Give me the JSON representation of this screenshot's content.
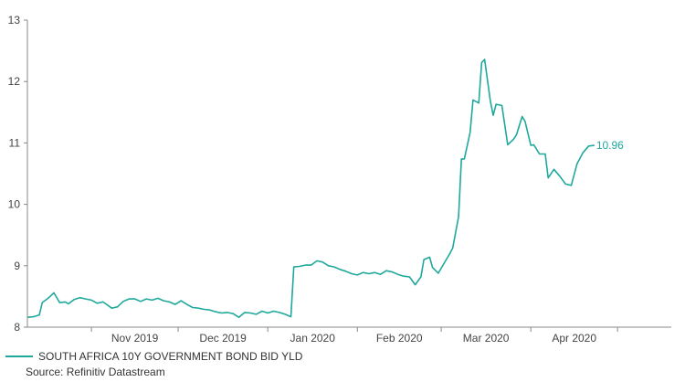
{
  "chart_data": {
    "type": "line",
    "title": "",
    "xlabel": "",
    "ylabel": "",
    "ylim": [
      8,
      13
    ],
    "yticks": [
      "8",
      "9",
      "10",
      "11",
      "12",
      "13"
    ],
    "xticks": [
      "Nov 2019",
      "Dec 2019",
      "Jan 2020",
      "Feb 2020",
      "Mar 2020",
      "Apr 2020"
    ],
    "grid": false,
    "legend_position": "bottom-left",
    "end_label": "10.96",
    "series": [
      {
        "name": "SOUTH AFRICA 10Y GOVERNMENT BOND BID YLD",
        "color": "#1fa89c",
        "points": [
          [
            "2019-10-10",
            8.16
          ],
          [
            "2019-10-12",
            8.17
          ],
          [
            "2019-10-14",
            8.2
          ],
          [
            "2019-10-15",
            8.4
          ],
          [
            "2019-10-17",
            8.47
          ],
          [
            "2019-10-19",
            8.56
          ],
          [
            "2019-10-21",
            8.4
          ],
          [
            "2019-10-23",
            8.41
          ],
          [
            "2019-10-24",
            8.38
          ],
          [
            "2019-10-26",
            8.45
          ],
          [
            "2019-10-28",
            8.48
          ],
          [
            "2019-10-30",
            8.46
          ],
          [
            "2019-11-01",
            8.44
          ],
          [
            "2019-11-03",
            8.39
          ],
          [
            "2019-11-05",
            8.41
          ],
          [
            "2019-11-06",
            8.38
          ],
          [
            "2019-11-08",
            8.31
          ],
          [
            "2019-11-10",
            8.33
          ],
          [
            "2019-11-12",
            8.42
          ],
          [
            "2019-11-14",
            8.46
          ],
          [
            "2019-11-16",
            8.46
          ],
          [
            "2019-11-18",
            8.42
          ],
          [
            "2019-11-20",
            8.46
          ],
          [
            "2019-11-22",
            8.44
          ],
          [
            "2019-11-24",
            8.47
          ],
          [
            "2019-11-26",
            8.43
          ],
          [
            "2019-11-28",
            8.41
          ],
          [
            "2019-11-30",
            8.37
          ],
          [
            "2019-12-02",
            8.43
          ],
          [
            "2019-12-04",
            8.37
          ],
          [
            "2019-12-06",
            8.32
          ],
          [
            "2019-12-08",
            8.31
          ],
          [
            "2019-12-10",
            8.29
          ],
          [
            "2019-12-12",
            8.28
          ],
          [
            "2019-12-14",
            8.25
          ],
          [
            "2019-12-16",
            8.23
          ],
          [
            "2019-12-18",
            8.24
          ],
          [
            "2019-12-20",
            8.22
          ],
          [
            "2019-12-22",
            8.16
          ],
          [
            "2019-12-24",
            8.24
          ],
          [
            "2019-12-26",
            8.23
          ],
          [
            "2019-12-28",
            8.21
          ],
          [
            "2019-12-30",
            8.26
          ],
          [
            "2020-01-01",
            8.23
          ],
          [
            "2020-01-03",
            8.26
          ],
          [
            "2020-01-05",
            8.24
          ],
          [
            "2020-01-07",
            8.21
          ],
          [
            "2020-01-09",
            8.17
          ],
          [
            "2020-01-10",
            8.98
          ],
          [
            "2020-01-12",
            8.99
          ],
          [
            "2020-01-14",
            9.01
          ],
          [
            "2020-01-16",
            9.01
          ],
          [
            "2020-01-18",
            9.08
          ],
          [
            "2020-01-20",
            9.06
          ],
          [
            "2020-01-22",
            9.0
          ],
          [
            "2020-01-24",
            8.98
          ],
          [
            "2020-01-26",
            8.94
          ],
          [
            "2020-01-28",
            8.91
          ],
          [
            "2020-01-30",
            8.87
          ],
          [
            "2020-02-01",
            8.85
          ],
          [
            "2020-02-03",
            8.89
          ],
          [
            "2020-02-05",
            8.87
          ],
          [
            "2020-02-07",
            8.89
          ],
          [
            "2020-02-09",
            8.86
          ],
          [
            "2020-02-11",
            8.92
          ],
          [
            "2020-02-13",
            8.9
          ],
          [
            "2020-02-15",
            8.86
          ],
          [
            "2020-02-17",
            8.83
          ],
          [
            "2020-02-19",
            8.82
          ],
          [
            "2020-02-21",
            8.69
          ],
          [
            "2020-02-23",
            8.82
          ],
          [
            "2020-02-24",
            9.1
          ],
          [
            "2020-02-26",
            9.14
          ],
          [
            "2020-02-27",
            8.97
          ],
          [
            "2020-02-29",
            8.88
          ],
          [
            "2020-03-02",
            9.04
          ],
          [
            "2020-03-04",
            9.2
          ],
          [
            "2020-03-05",
            9.29
          ],
          [
            "2020-03-07",
            9.8
          ],
          [
            "2020-03-08",
            10.74
          ],
          [
            "2020-03-09",
            10.74
          ],
          [
            "2020-03-11",
            11.17
          ],
          [
            "2020-03-12",
            11.7
          ],
          [
            "2020-03-14",
            11.65
          ],
          [
            "2020-03-15",
            12.31
          ],
          [
            "2020-03-16",
            12.36
          ],
          [
            "2020-03-18",
            11.68
          ],
          [
            "2020-03-19",
            11.45
          ],
          [
            "2020-03-20",
            11.63
          ],
          [
            "2020-03-22",
            11.61
          ],
          [
            "2020-03-24",
            10.97
          ],
          [
            "2020-03-26",
            11.06
          ],
          [
            "2020-03-27",
            11.13
          ],
          [
            "2020-03-29",
            11.43
          ],
          [
            "2020-03-30",
            11.35
          ],
          [
            "2020-04-01",
            10.96
          ],
          [
            "2020-04-02",
            10.97
          ],
          [
            "2020-04-04",
            10.82
          ],
          [
            "2020-04-06",
            10.82
          ],
          [
            "2020-04-07",
            10.43
          ],
          [
            "2020-04-09",
            10.57
          ],
          [
            "2020-04-11",
            10.46
          ],
          [
            "2020-04-13",
            10.33
          ],
          [
            "2020-04-15",
            10.31
          ],
          [
            "2020-04-17",
            10.66
          ],
          [
            "2020-04-19",
            10.84
          ],
          [
            "2020-04-21",
            10.95
          ],
          [
            "2020-04-23",
            10.96
          ]
        ]
      }
    ],
    "source": "Source: Refinitiv Datastream"
  }
}
